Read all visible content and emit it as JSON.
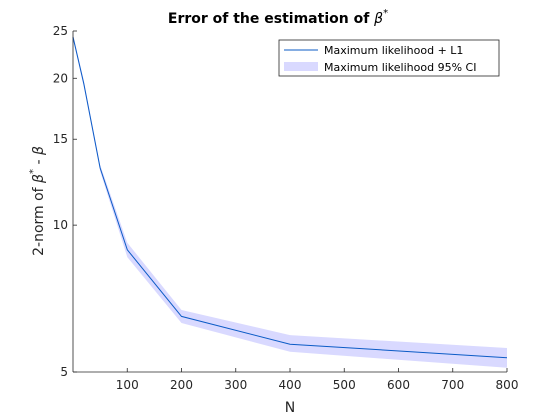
{
  "chart_data": {
    "type": "line",
    "title": "Error of the estimation of β*",
    "title_parts": {
      "text": "Error of the estimation of ",
      "symbol": "β",
      "sup": "*"
    },
    "xlabel": "N",
    "ylabel_parts": {
      "pre": "2-norm of ",
      "b1": "β",
      "sup": "*",
      "mid": " - ",
      "b2": "β"
    },
    "xlim": [
      0,
      800
    ],
    "ylim": [
      5,
      25
    ],
    "yscale": "log",
    "xticks": [
      100,
      200,
      300,
      400,
      500,
      600,
      700,
      800
    ],
    "yticks": [
      5,
      10,
      15,
      20,
      25
    ],
    "grid": false,
    "legend_position": "top-right",
    "x": [
      0,
      20,
      50,
      100,
      200,
      400,
      800
    ],
    "series": [
      {
        "name": "Maximum likelihood + L1",
        "color": "#0b5bc6",
        "values": [
          24.3,
          19.5,
          13.1,
          8.9,
          6.5,
          5.7,
          5.35
        ]
      }
    ],
    "band": {
      "name": "Maximum likelihood 95% CI",
      "color": "#d9d9ff",
      "lower": [
        24.0,
        19.2,
        12.9,
        8.6,
        6.3,
        5.5,
        5.1
      ],
      "upper": [
        24.6,
        19.8,
        13.3,
        9.2,
        6.7,
        5.95,
        5.6
      ]
    }
  }
}
